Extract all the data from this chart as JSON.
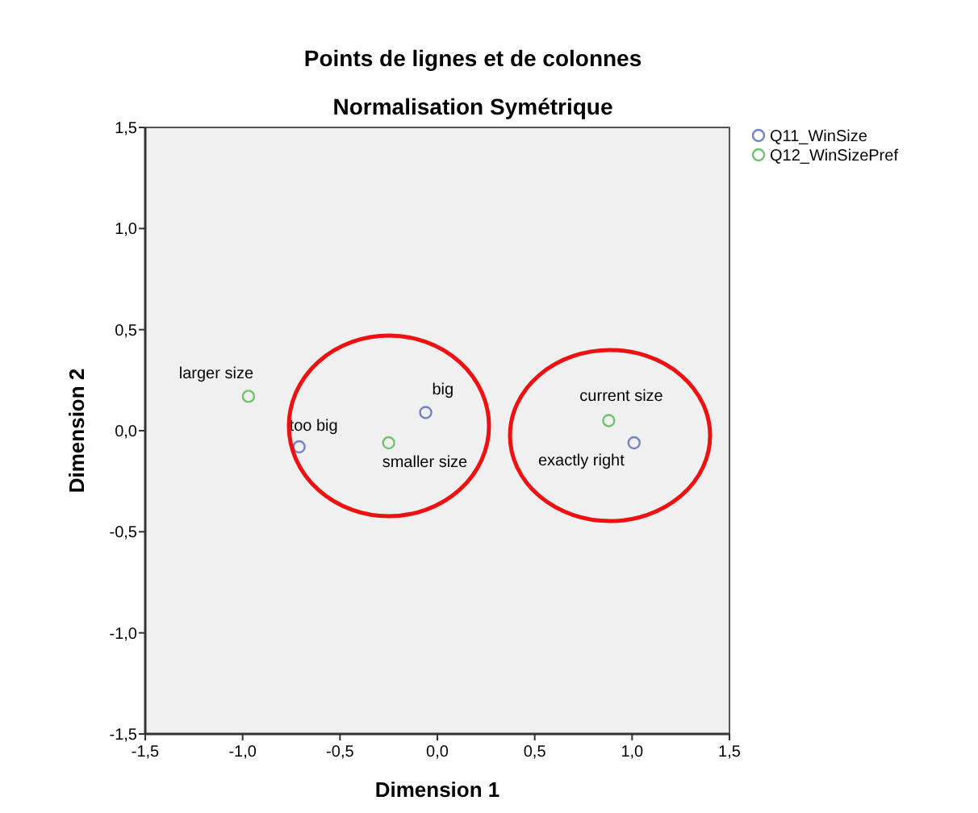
{
  "chart_data": {
    "type": "scatter",
    "title": "Points de lignes et de colonnes",
    "subtitle": "Normalisation Symétrique",
    "xlabel": "Dimension 1",
    "ylabel": "Dimension 2",
    "series": [
      {
        "name": "Q11_WinSize",
        "color": "#7383c6",
        "x": [
          -0.71,
          -0.06,
          1.01
        ],
        "values": [
          -0.08,
          0.09,
          -0.06
        ]
      },
      {
        "name": "Q12_WinSizePref",
        "color": "#6cc46c",
        "x": [
          -0.97,
          -0.25,
          0.88
        ],
        "values": [
          0.17,
          -0.06,
          0.05
        ]
      }
    ],
    "annotations": [
      {
        "text": "too big",
        "x": -0.71,
        "y": -0.08
      },
      {
        "text": "big",
        "x": -0.06,
        "y": 0.09
      },
      {
        "text": "exactly right",
        "x": 1.01,
        "y": -0.06
      },
      {
        "text": "larger size",
        "x": -0.97,
        "y": 0.17
      },
      {
        "text": "smaller size",
        "x": -0.25,
        "y": -0.06
      },
      {
        "text": "current size",
        "x": 0.88,
        "y": 0.05
      }
    ],
    "xlim": [
      -1.5,
      1.5
    ],
    "ylim": [
      -1.5,
      1.5
    ],
    "xticks": [
      {
        "value": -1.5,
        "label": "-1,5"
      },
      {
        "value": -1,
        "label": "-1,0"
      },
      {
        "value": -0.5,
        "label": "-0,5"
      },
      {
        "value": 0,
        "label": "0,0"
      },
      {
        "value": 0.5,
        "label": "0,5"
      },
      {
        "value": 1,
        "label": "1,0"
      },
      {
        "value": 1.5,
        "label": "1,5"
      }
    ],
    "yticks": [
      {
        "value": -1.5,
        "label": "-1,5"
      },
      {
        "value": -1,
        "label": "-1,0"
      },
      {
        "value": -0.5,
        "label": "-0,5"
      },
      {
        "value": 0,
        "label": "0,0"
      },
      {
        "value": 0.5,
        "label": "0,5"
      },
      {
        "value": 1,
        "label": "1,0"
      },
      {
        "value": 1.5,
        "label": "1,5"
      }
    ],
    "marker": "circle",
    "legend": "top right",
    "grid": false
  }
}
